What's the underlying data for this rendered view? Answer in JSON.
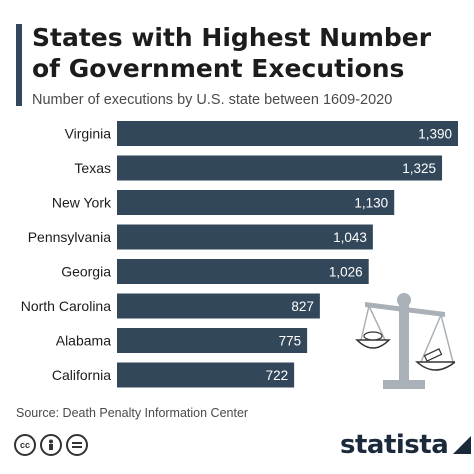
{
  "header": {
    "title": "States with Highest Number of Government Executions",
    "subtitle": "Number of executions by U.S. state between 1609-2020"
  },
  "footer": {
    "source": "Source: Death Penalty Information Center",
    "brand": "statista",
    "license_icons": [
      "cc",
      "person",
      "equals"
    ]
  },
  "colors": {
    "bar": "#33475b",
    "accent": "#33475b",
    "text": "#1c1c1c",
    "illustration": "#a9b0b7"
  },
  "chart_data": {
    "type": "bar",
    "orientation": "horizontal",
    "title": "States with Highest Number of Government Executions",
    "subtitle": "Number of executions by U.S. state between 1609-2020",
    "categories": [
      "Virginia",
      "Texas",
      "New York",
      "Pennsylvania",
      "Georgia",
      "North Carolina",
      "Alabama",
      "California"
    ],
    "values": [
      1390,
      1325,
      1130,
      1043,
      1026,
      827,
      775,
      722
    ],
    "value_labels": [
      "1,390",
      "1,325",
      "1,130",
      "1,043",
      "1,026",
      "827",
      "775",
      "722"
    ],
    "xlim": [
      0,
      1390
    ],
    "grid": false,
    "legend": "none"
  }
}
